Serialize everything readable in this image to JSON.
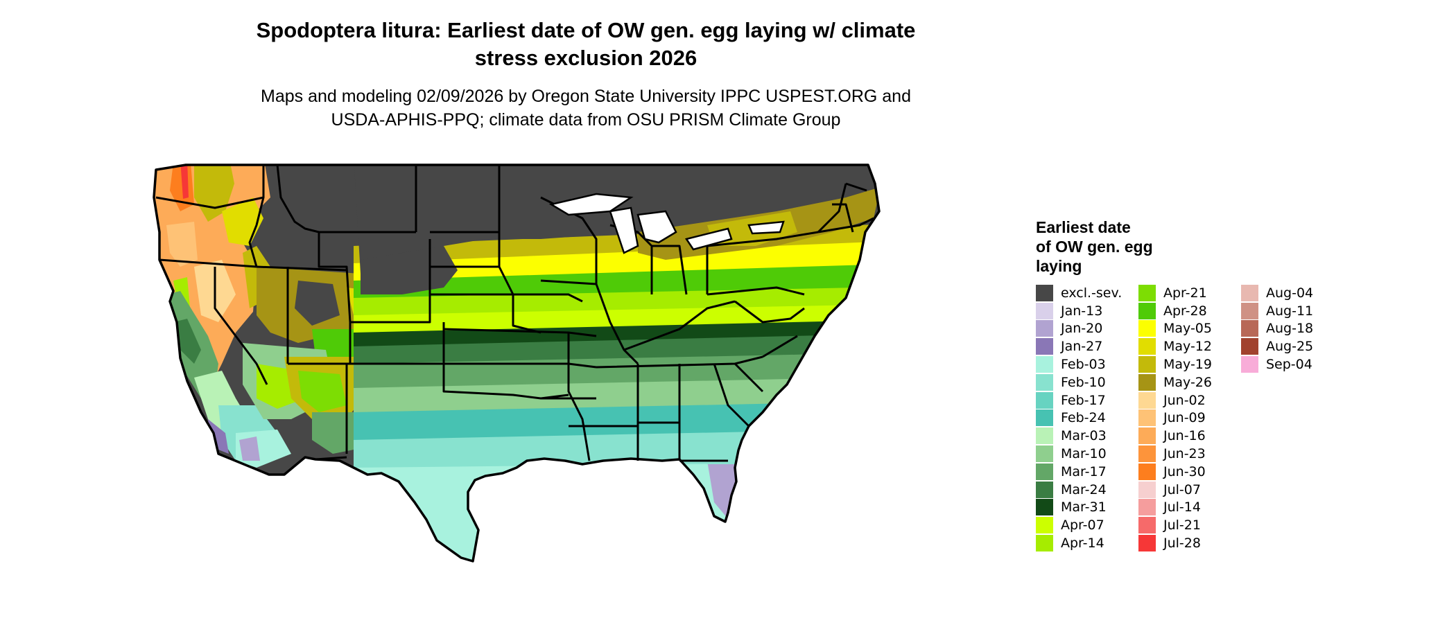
{
  "map": {
    "title_line1": "Spodoptera litura: Earliest date of OW gen. egg laying w/ climate",
    "title_line2": "stress exclusion 2026",
    "subtitle_line1": "Maps and modeling 02/09/2026 by Oregon State University IPPC USPEST.ORG and",
    "subtitle_line2": "USDA-APHIS-PPQ; climate data from OSU PRISM Climate Group",
    "legend_title_lines": [
      "Earliest date",
      "of OW gen. egg",
      "laying"
    ],
    "legend_columns": [
      [
        {
          "label": "excl.-sev.",
          "color": "#474747"
        },
        {
          "label": "Jan-13",
          "color": "#d9d0ea"
        },
        {
          "label": "Jan-20",
          "color": "#b1a3d1"
        },
        {
          "label": "Jan-27",
          "color": "#8a77b6"
        },
        {
          "label": "Feb-03",
          "color": "#a8f2de"
        },
        {
          "label": "Feb-10",
          "color": "#88e2cf"
        },
        {
          "label": "Feb-17",
          "color": "#67d3c1"
        },
        {
          "label": "Feb-24",
          "color": "#47c2b2"
        },
        {
          "label": "Mar-03",
          "color": "#b9f2b6"
        },
        {
          "label": "Mar-10",
          "color": "#8fcf8e"
        },
        {
          "label": "Mar-17",
          "color": "#63a767"
        },
        {
          "label": "Mar-24",
          "color": "#3a7d43"
        },
        {
          "label": "Mar-31",
          "color": "#124a17"
        },
        {
          "label": "Apr-07",
          "color": "#ccff00"
        },
        {
          "label": "Apr-14",
          "color": "#a6ec00"
        }
      ],
      [
        {
          "label": "Apr-21",
          "color": "#7ddd03"
        },
        {
          "label": "Apr-28",
          "color": "#4fcb07"
        },
        {
          "label": "May-05",
          "color": "#fcff00"
        },
        {
          "label": "May-12",
          "color": "#e1dd00"
        },
        {
          "label": "May-19",
          "color": "#c3ba0a"
        },
        {
          "label": "May-26",
          "color": "#a69415"
        },
        {
          "label": "Jun-02",
          "color": "#fed892"
        },
        {
          "label": "Jun-09",
          "color": "#fec276"
        },
        {
          "label": "Jun-16",
          "color": "#fdab58"
        },
        {
          "label": "Jun-23",
          "color": "#fd943b"
        },
        {
          "label": "Jun-30",
          "color": "#fd7e1e"
        },
        {
          "label": "Jul-07",
          "color": "#f6cfcf"
        },
        {
          "label": "Jul-14",
          "color": "#f59d9d"
        },
        {
          "label": "Jul-21",
          "color": "#f66a6a"
        },
        {
          "label": "Jul-28",
          "color": "#f63737"
        }
      ],
      [
        {
          "label": "Aug-04",
          "color": "#e8b8b0"
        },
        {
          "label": "Aug-11",
          "color": "#cf9184"
        },
        {
          "label": "Aug-18",
          "color": "#b86857"
        },
        {
          "label": "Aug-25",
          "color": "#a1422e"
        },
        {
          "label": "Sep-04",
          "color": "#f8acd8"
        }
      ]
    ]
  }
}
